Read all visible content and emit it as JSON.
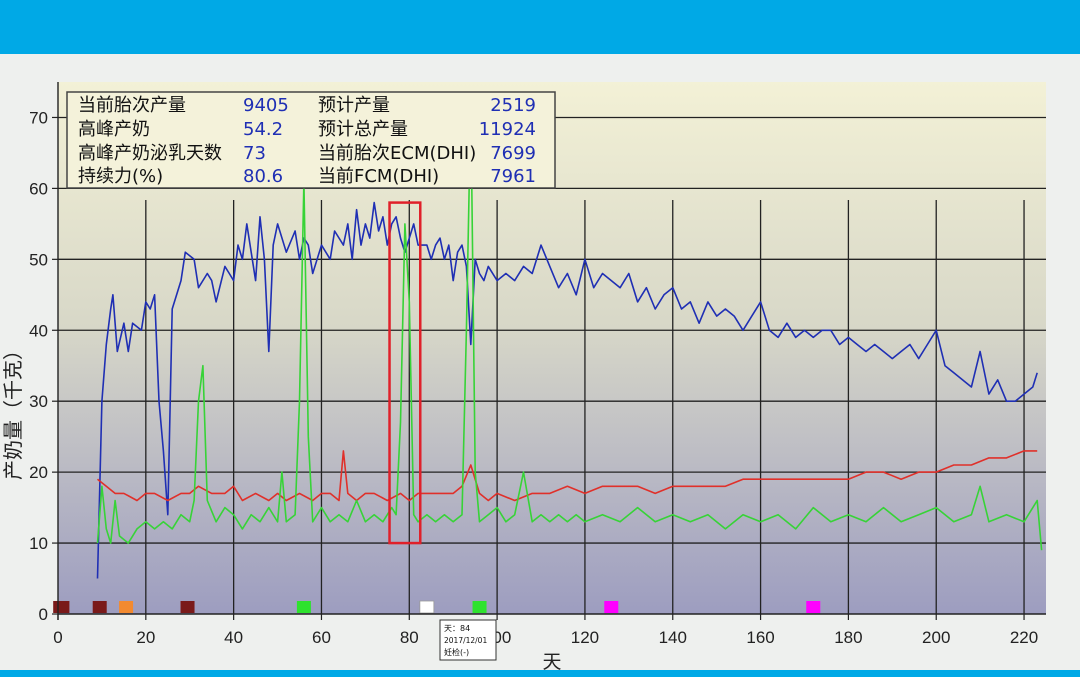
{
  "stats": {
    "rows": [
      {
        "label1": "当前胎次产量",
        "value1": "9405",
        "label2": "预计产量",
        "value2": "2519"
      },
      {
        "label1": "高峰产奶",
        "value1": "54.2",
        "label2": "预计总产量",
        "value2": "11924"
      },
      {
        "label1": "高峰产奶泌乳天数",
        "value1": "73",
        "label2": "当前胎次ECM(DHI)",
        "value2": "7699"
      },
      {
        "label1": "持续力(%)",
        "value1": "80.6",
        "label2": "当前FCM(DHI)",
        "value2": "7961"
      }
    ]
  },
  "tooltip": {
    "line1": "天：84",
    "line2": "2017/12/01",
    "line3": "妊检(-)"
  },
  "colors": {
    "band": "#00a9e6",
    "blue_series": "#1f2fb4",
    "red_series": "#e0302a",
    "green_series": "#37d337",
    "highlight": "#e0202a"
  },
  "chart_data": {
    "type": "line",
    "xlabel": "天",
    "ylabel": "产奶量（千克）",
    "xlim": [
      0,
      225
    ],
    "ylim": [
      0,
      75
    ],
    "x_ticks": [
      0,
      20,
      40,
      60,
      80,
      100,
      120,
      140,
      160,
      180,
      200,
      220
    ],
    "y_ticks": [
      0,
      10,
      20,
      30,
      40,
      50,
      60,
      70
    ],
    "grid": true,
    "series": [
      {
        "color": "#1f2fb4",
        "points": [
          [
            9,
            5
          ],
          [
            10,
            30
          ],
          [
            11,
            38
          ],
          [
            12,
            43
          ],
          [
            12.5,
            45
          ],
          [
            13.5,
            37
          ],
          [
            15,
            41
          ],
          [
            16,
            37
          ],
          [
            17,
            41
          ],
          [
            19,
            40
          ],
          [
            20,
            44
          ],
          [
            21,
            43
          ],
          [
            22,
            45
          ],
          [
            23,
            30
          ],
          [
            24,
            23
          ],
          [
            25,
            14
          ],
          [
            26,
            43
          ],
          [
            28,
            47
          ],
          [
            29,
            51
          ],
          [
            31,
            50
          ],
          [
            32,
            46
          ],
          [
            34,
            48
          ],
          [
            35,
            47
          ],
          [
            36,
            44
          ],
          [
            38,
            49
          ],
          [
            39,
            48
          ],
          [
            40,
            47
          ],
          [
            41,
            52
          ],
          [
            42,
            50
          ],
          [
            43,
            55
          ],
          [
            45,
            47
          ],
          [
            46,
            56
          ],
          [
            47,
            50
          ],
          [
            48,
            37
          ],
          [
            49,
            52
          ],
          [
            50,
            55
          ],
          [
            52,
            51
          ],
          [
            54,
            54
          ],
          [
            55,
            50
          ],
          [
            56,
            53
          ],
          [
            57,
            52
          ],
          [
            58,
            48
          ],
          [
            59,
            50
          ],
          [
            60,
            52
          ],
          [
            62,
            50
          ],
          [
            63,
            54
          ],
          [
            65,
            52
          ],
          [
            66,
            55
          ],
          [
            67,
            50
          ],
          [
            68,
            57
          ],
          [
            69,
            52
          ],
          [
            70,
            55
          ],
          [
            71,
            53
          ],
          [
            72,
            58
          ],
          [
            73,
            54
          ],
          [
            74,
            56
          ],
          [
            75,
            52
          ],
          [
            76,
            55
          ],
          [
            77,
            56
          ],
          [
            78,
            53
          ],
          [
            79,
            51
          ],
          [
            80,
            53
          ],
          [
            81,
            55
          ],
          [
            82,
            52
          ],
          [
            84,
            52
          ],
          [
            85,
            50
          ],
          [
            86,
            52
          ],
          [
            87,
            53
          ],
          [
            88,
            50
          ],
          [
            89,
            52
          ],
          [
            90,
            47
          ],
          [
            91,
            51
          ],
          [
            92,
            52
          ],
          [
            93,
            49
          ],
          [
            94,
            38
          ],
          [
            95,
            50
          ],
          [
            96,
            48
          ],
          [
            97,
            47
          ],
          [
            98,
            49
          ],
          [
            100,
            47
          ],
          [
            102,
            48
          ],
          [
            104,
            47
          ],
          [
            106,
            49
          ],
          [
            108,
            48
          ],
          [
            110,
            52
          ],
          [
            112,
            49
          ],
          [
            114,
            46
          ],
          [
            116,
            48
          ],
          [
            118,
            45
          ],
          [
            120,
            50
          ],
          [
            122,
            46
          ],
          [
            124,
            48
          ],
          [
            126,
            47
          ],
          [
            128,
            46
          ],
          [
            130,
            48
          ],
          [
            132,
            44
          ],
          [
            134,
            46
          ],
          [
            136,
            43
          ],
          [
            138,
            45
          ],
          [
            140,
            46
          ],
          [
            142,
            43
          ],
          [
            144,
            44
          ],
          [
            146,
            41
          ],
          [
            148,
            44
          ],
          [
            150,
            42
          ],
          [
            152,
            43
          ],
          [
            154,
            42
          ],
          [
            156,
            40
          ],
          [
            158,
            42
          ],
          [
            160,
            44
          ],
          [
            162,
            40
          ],
          [
            164,
            39
          ],
          [
            166,
            41
          ],
          [
            168,
            39
          ],
          [
            170,
            40
          ],
          [
            172,
            39
          ],
          [
            174,
            40
          ],
          [
            176,
            40
          ],
          [
            178,
            38
          ],
          [
            180,
            39
          ],
          [
            182,
            38
          ],
          [
            184,
            37
          ],
          [
            186,
            38
          ],
          [
            188,
            37
          ],
          [
            190,
            36
          ],
          [
            192,
            37
          ],
          [
            194,
            38
          ],
          [
            196,
            36
          ],
          [
            198,
            38
          ],
          [
            200,
            40
          ],
          [
            202,
            35
          ],
          [
            204,
            34
          ],
          [
            206,
            33
          ],
          [
            208,
            32
          ],
          [
            210,
            37
          ],
          [
            212,
            31
          ],
          [
            214,
            33
          ],
          [
            216,
            30
          ],
          [
            218,
            30
          ],
          [
            220,
            31
          ],
          [
            222,
            32
          ],
          [
            223,
            34
          ]
        ]
      },
      {
        "color": "#e0302a",
        "points": [
          [
            9,
            19
          ],
          [
            11,
            18
          ],
          [
            13,
            17
          ],
          [
            15,
            17
          ],
          [
            18,
            16
          ],
          [
            20,
            17
          ],
          [
            22,
            17
          ],
          [
            25,
            16
          ],
          [
            28,
            17
          ],
          [
            30,
            17
          ],
          [
            32,
            18
          ],
          [
            35,
            17
          ],
          [
            38,
            17
          ],
          [
            40,
            18
          ],
          [
            42,
            16
          ],
          [
            45,
            17
          ],
          [
            48,
            16
          ],
          [
            50,
            17
          ],
          [
            52,
            16
          ],
          [
            55,
            17
          ],
          [
            58,
            16
          ],
          [
            60,
            17
          ],
          [
            62,
            17
          ],
          [
            64,
            16
          ],
          [
            65,
            23
          ],
          [
            66,
            17
          ],
          [
            68,
            16
          ],
          [
            70,
            17
          ],
          [
            72,
            17
          ],
          [
            75,
            16
          ],
          [
            78,
            17
          ],
          [
            80,
            16
          ],
          [
            82,
            17
          ],
          [
            85,
            17
          ],
          [
            88,
            17
          ],
          [
            90,
            17
          ],
          [
            92,
            18
          ],
          [
            94,
            21
          ],
          [
            96,
            17
          ],
          [
            98,
            16
          ],
          [
            100,
            17
          ],
          [
            104,
            16
          ],
          [
            108,
            17
          ],
          [
            112,
            17
          ],
          [
            116,
            18
          ],
          [
            120,
            17
          ],
          [
            124,
            18
          ],
          [
            128,
            18
          ],
          [
            132,
            18
          ],
          [
            136,
            17
          ],
          [
            140,
            18
          ],
          [
            144,
            18
          ],
          [
            148,
            18
          ],
          [
            152,
            18
          ],
          [
            156,
            19
          ],
          [
            160,
            19
          ],
          [
            164,
            19
          ],
          [
            168,
            19
          ],
          [
            172,
            19
          ],
          [
            176,
            19
          ],
          [
            180,
            19
          ],
          [
            184,
            20
          ],
          [
            188,
            20
          ],
          [
            192,
            19
          ],
          [
            196,
            20
          ],
          [
            200,
            20
          ],
          [
            204,
            21
          ],
          [
            208,
            21
          ],
          [
            212,
            22
          ],
          [
            216,
            22
          ],
          [
            220,
            23
          ],
          [
            223,
            23
          ]
        ]
      },
      {
        "color": "#37d337",
        "points": [
          [
            9,
            10
          ],
          [
            10,
            18
          ],
          [
            11,
            12
          ],
          [
            12,
            10
          ],
          [
            13,
            16
          ],
          [
            14,
            11
          ],
          [
            16,
            10
          ],
          [
            18,
            12
          ],
          [
            20,
            13
          ],
          [
            22,
            12
          ],
          [
            24,
            13
          ],
          [
            26,
            12
          ],
          [
            28,
            14
          ],
          [
            30,
            13
          ],
          [
            31,
            16
          ],
          [
            32,
            30
          ],
          [
            33,
            35
          ],
          [
            34,
            16
          ],
          [
            36,
            13
          ],
          [
            38,
            15
          ],
          [
            40,
            14
          ],
          [
            42,
            12
          ],
          [
            44,
            14
          ],
          [
            46,
            13
          ],
          [
            48,
            15
          ],
          [
            50,
            13
          ],
          [
            51,
            20
          ],
          [
            52,
            13
          ],
          [
            54,
            14
          ],
          [
            55,
            30
          ],
          [
            56,
            61
          ],
          [
            57,
            25
          ],
          [
            58,
            13
          ],
          [
            60,
            15
          ],
          [
            62,
            13
          ],
          [
            64,
            14
          ],
          [
            66,
            13
          ],
          [
            68,
            16
          ],
          [
            70,
            13
          ],
          [
            72,
            14
          ],
          [
            74,
            13
          ],
          [
            76,
            15
          ],
          [
            77,
            14
          ],
          [
            78,
            27
          ],
          [
            79,
            55
          ],
          [
            80,
            44
          ],
          [
            81,
            14
          ],
          [
            82,
            13
          ],
          [
            84,
            14
          ],
          [
            86,
            13
          ],
          [
            88,
            14
          ],
          [
            90,
            13
          ],
          [
            92,
            14
          ],
          [
            93,
            40
          ],
          [
            94,
            72
          ],
          [
            95,
            20
          ],
          [
            96,
            13
          ],
          [
            98,
            14
          ],
          [
            100,
            15
          ],
          [
            102,
            13
          ],
          [
            104,
            14
          ],
          [
            106,
            20
          ],
          [
            108,
            13
          ],
          [
            110,
            14
          ],
          [
            112,
            13
          ],
          [
            114,
            14
          ],
          [
            116,
            13
          ],
          [
            118,
            14
          ],
          [
            120,
            13
          ],
          [
            124,
            14
          ],
          [
            128,
            13
          ],
          [
            132,
            15
          ],
          [
            136,
            13
          ],
          [
            140,
            14
          ],
          [
            144,
            13
          ],
          [
            148,
            14
          ],
          [
            152,
            12
          ],
          [
            156,
            14
          ],
          [
            160,
            13
          ],
          [
            164,
            14
          ],
          [
            168,
            12
          ],
          [
            172,
            15
          ],
          [
            176,
            13
          ],
          [
            180,
            14
          ],
          [
            184,
            13
          ],
          [
            188,
            15
          ],
          [
            192,
            13
          ],
          [
            196,
            14
          ],
          [
            200,
            15
          ],
          [
            204,
            13
          ],
          [
            208,
            14
          ],
          [
            210,
            18
          ],
          [
            212,
            13
          ],
          [
            216,
            14
          ],
          [
            220,
            13
          ],
          [
            223,
            16
          ],
          [
            224,
            9
          ]
        ]
      }
    ],
    "event_markers": [
      {
        "x": 0.5,
        "color": "#7a1a1a"
      },
      {
        "x": 1,
        "color": "#7a1a1a"
      },
      {
        "x": 9.5,
        "color": "#7a1a1a"
      },
      {
        "x": 15.5,
        "color": "#f28a30"
      },
      {
        "x": 29.5,
        "color": "#7a1a1a"
      },
      {
        "x": 56,
        "color": "#2ee22e"
      },
      {
        "x": 84,
        "color": "#ffffff"
      },
      {
        "x": 96,
        "color": "#2ee22e"
      },
      {
        "x": 126,
        "color": "#ff00ff"
      },
      {
        "x": 172,
        "color": "#ff00ff"
      }
    ],
    "highlight_box": {
      "x_from": 75.5,
      "x_to": 82.5,
      "y_from": 10,
      "y_to": 58
    }
  }
}
